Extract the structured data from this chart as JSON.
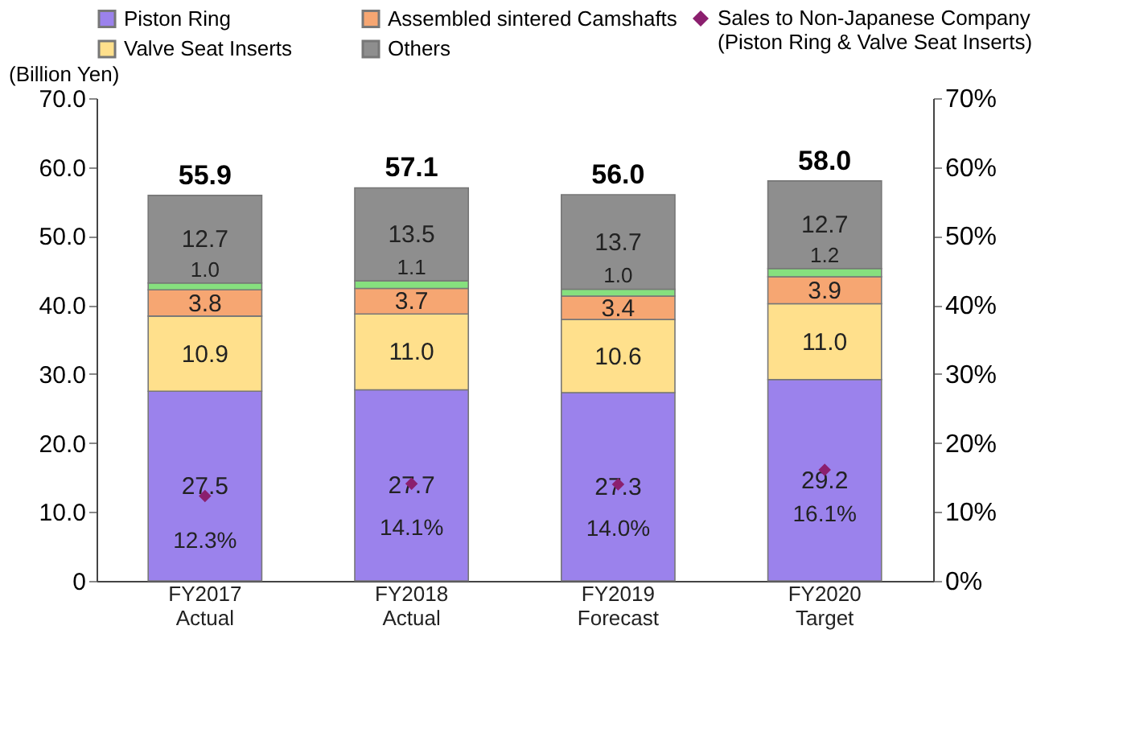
{
  "chart_data": {
    "type": "bar",
    "stacked": true,
    "ylabel": "(Billion Yen)",
    "categories": [
      "FY2017 Actual",
      "FY2018 Actual",
      "FY2019 Forecast",
      "FY2020 Target"
    ],
    "series": [
      {
        "name": "Piston Ring",
        "color": "#9b82ec",
        "values": [
          27.5,
          27.7,
          27.3,
          29.2
        ],
        "value_labels": [
          "27.5",
          "27.7",
          "27.3",
          "29.2"
        ]
      },
      {
        "name": "Valve Seat Inserts",
        "color": "#ffe08c",
        "values": [
          10.9,
          11.0,
          10.6,
          11.0
        ],
        "value_labels": [
          "10.9",
          "11.0",
          "10.6",
          "11.0"
        ]
      },
      {
        "name": "Assembled sintered Camshafts",
        "color": "#f6a672",
        "values": [
          3.8,
          3.7,
          3.4,
          3.9
        ],
        "value_labels": [
          "3.8",
          "3.7",
          "3.4",
          "3.9"
        ]
      },
      {
        "color": "#86e07e",
        "values": [
          1.0,
          1.1,
          1.0,
          1.2
        ],
        "value_labels": [
          "1.0",
          "1.1",
          "1.0",
          "1.2"
        ]
      },
      {
        "name": "Others",
        "color": "#8e8e8e",
        "values": [
          12.7,
          13.5,
          13.7,
          12.7
        ],
        "value_labels": [
          "12.7",
          "13.5",
          "13.7",
          "12.7"
        ]
      },
      {
        "name": "Sales to Non-Japanese Company (Piston Ring & Valve Seat Inserts)",
        "type": "scatter",
        "axis": "y2",
        "marker": "diamond",
        "color": "#8b1f6e",
        "x": [
          "FY2017 Actual",
          "FY2018 Actual",
          "FY2019 Forecast",
          "FY2020 Target"
        ],
        "values": [
          12.3,
          14.1,
          14.0,
          16.1
        ],
        "value_labels": [
          "12.3%",
          "14.1%",
          "14.0%",
          "16.1%"
        ]
      }
    ],
    "totals": [
      "55.9",
      "57.1",
      "56.0",
      "58.0"
    ],
    "data_labels": true,
    "ylim": [
      0,
      70
    ],
    "yticks": [
      0,
      {
        "value": 10,
        "label": "10.0"
      },
      {
        "value": 20,
        "label": "20.0"
      },
      {
        "value": 30,
        "label": "30.0"
      },
      {
        "value": 40,
        "label": "40.0"
      },
      {
        "value": 50,
        "label": "50.0"
      },
      {
        "value": 60,
        "label": "60.0"
      },
      {
        "value": 70,
        "label": "70.0"
      }
    ],
    "y2lim": [
      0,
      70
    ],
    "y2ticks": [
      {
        "value": 0,
        "label": "0%"
      },
      {
        "value": 10,
        "label": "10%"
      },
      {
        "value": 20,
        "label": "20%"
      },
      {
        "value": 30,
        "label": "30%"
      },
      {
        "value": 40,
        "label": "40%"
      },
      {
        "value": 50,
        "label": "50%"
      },
      {
        "value": 60,
        "label": "60%"
      },
      {
        "value": 70,
        "label": "70%"
      }
    ],
    "legend": "top",
    "grid": false
  }
}
